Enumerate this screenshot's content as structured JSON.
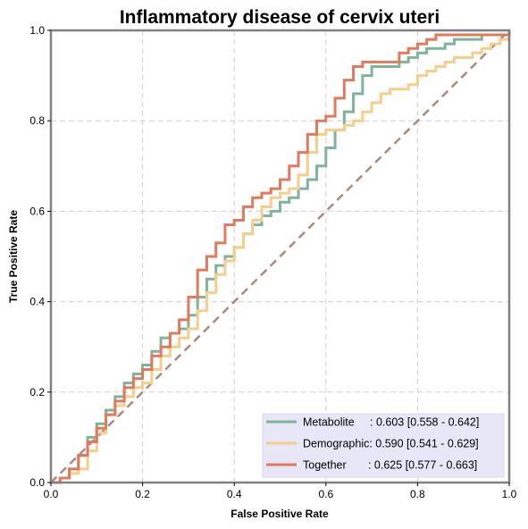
{
  "chart_data": {
    "type": "line",
    "title": "Inflammatory disease of cervix uteri",
    "xlabel": "False Positive Rate",
    "ylabel": "True Positive Rate",
    "xlim": [
      0,
      1
    ],
    "ylim": [
      0,
      1
    ],
    "xticks": [
      "0.0",
      "0.2",
      "0.4",
      "0.6",
      "0.8",
      "1.0"
    ],
    "yticks": [
      "0.0",
      "0.2",
      "0.4",
      "0.6",
      "0.8",
      "1.0"
    ],
    "grid": true,
    "legend_position": "bottom-right",
    "reference_line": {
      "x": [
        0,
        1
      ],
      "y": [
        0,
        1
      ],
      "color": "#a88a7e",
      "style": "dashed"
    },
    "series": [
      {
        "name": "Metabolite",
        "legend_text": "Metabolite     : 0.603 [0.558 - 0.642]",
        "color": "#7fb39b",
        "x": [
          0.0,
          0.02,
          0.04,
          0.06,
          0.08,
          0.1,
          0.12,
          0.14,
          0.16,
          0.18,
          0.2,
          0.22,
          0.24,
          0.26,
          0.28,
          0.3,
          0.32,
          0.34,
          0.36,
          0.38,
          0.4,
          0.42,
          0.44,
          0.46,
          0.48,
          0.5,
          0.52,
          0.54,
          0.56,
          0.58,
          0.6,
          0.62,
          0.64,
          0.66,
          0.68,
          0.7,
          0.72,
          0.74,
          0.76,
          0.78,
          0.8,
          0.82,
          0.84,
          0.86,
          0.88,
          0.9,
          0.92,
          0.94,
          0.96,
          0.98,
          1.0
        ],
        "y": [
          0.0,
          0.01,
          0.03,
          0.06,
          0.1,
          0.13,
          0.16,
          0.19,
          0.22,
          0.24,
          0.26,
          0.29,
          0.32,
          0.33,
          0.34,
          0.37,
          0.41,
          0.45,
          0.48,
          0.5,
          0.52,
          0.55,
          0.57,
          0.59,
          0.6,
          0.62,
          0.63,
          0.65,
          0.67,
          0.7,
          0.74,
          0.78,
          0.82,
          0.86,
          0.9,
          0.92,
          0.92,
          0.92,
          0.93,
          0.94,
          0.95,
          0.96,
          0.96,
          0.97,
          0.98,
          0.98,
          0.98,
          0.99,
          0.99,
          0.99,
          1.0
        ]
      },
      {
        "name": "Demographic",
        "legend_text": "Demographic: 0.590 [0.541 - 0.629]",
        "color": "#f5cd8c",
        "x": [
          0.0,
          0.02,
          0.04,
          0.06,
          0.08,
          0.1,
          0.12,
          0.14,
          0.16,
          0.18,
          0.2,
          0.22,
          0.24,
          0.26,
          0.28,
          0.3,
          0.32,
          0.34,
          0.36,
          0.38,
          0.4,
          0.42,
          0.44,
          0.46,
          0.48,
          0.5,
          0.52,
          0.54,
          0.56,
          0.58,
          0.6,
          0.62,
          0.64,
          0.66,
          0.68,
          0.7,
          0.72,
          0.74,
          0.76,
          0.78,
          0.8,
          0.82,
          0.84,
          0.86,
          0.88,
          0.9,
          0.92,
          0.94,
          0.96,
          0.98,
          1.0
        ],
        "y": [
          0.0,
          0.01,
          0.02,
          0.03,
          0.07,
          0.11,
          0.15,
          0.17,
          0.19,
          0.21,
          0.22,
          0.25,
          0.28,
          0.3,
          0.32,
          0.34,
          0.38,
          0.42,
          0.46,
          0.49,
          0.52,
          0.55,
          0.58,
          0.61,
          0.63,
          0.64,
          0.65,
          0.68,
          0.73,
          0.77,
          0.78,
          0.78,
          0.79,
          0.8,
          0.82,
          0.84,
          0.86,
          0.87,
          0.87,
          0.88,
          0.9,
          0.91,
          0.92,
          0.93,
          0.94,
          0.94,
          0.95,
          0.96,
          0.97,
          0.98,
          1.0
        ]
      },
      {
        "name": "Together",
        "legend_text": "Together       : 0.625 [0.577 - 0.663]",
        "color": "#e07a5f",
        "x": [
          0.0,
          0.02,
          0.04,
          0.06,
          0.08,
          0.1,
          0.12,
          0.14,
          0.16,
          0.18,
          0.2,
          0.22,
          0.24,
          0.26,
          0.28,
          0.3,
          0.32,
          0.34,
          0.36,
          0.38,
          0.4,
          0.42,
          0.44,
          0.46,
          0.48,
          0.5,
          0.52,
          0.54,
          0.56,
          0.58,
          0.6,
          0.62,
          0.64,
          0.66,
          0.68,
          0.7,
          0.72,
          0.74,
          0.76,
          0.78,
          0.8,
          0.82,
          0.84,
          0.86,
          0.88,
          0.9,
          0.92,
          0.94,
          0.96,
          0.98,
          1.0
        ],
        "y": [
          0.0,
          0.01,
          0.03,
          0.06,
          0.09,
          0.12,
          0.15,
          0.18,
          0.21,
          0.23,
          0.25,
          0.28,
          0.3,
          0.33,
          0.36,
          0.41,
          0.47,
          0.5,
          0.53,
          0.57,
          0.58,
          0.61,
          0.63,
          0.64,
          0.65,
          0.67,
          0.7,
          0.73,
          0.77,
          0.8,
          0.81,
          0.85,
          0.89,
          0.92,
          0.93,
          0.93,
          0.93,
          0.93,
          0.95,
          0.96,
          0.97,
          0.98,
          0.99,
          0.99,
          0.99,
          0.99,
          0.99,
          0.99,
          0.99,
          0.99,
          1.0
        ]
      }
    ]
  }
}
